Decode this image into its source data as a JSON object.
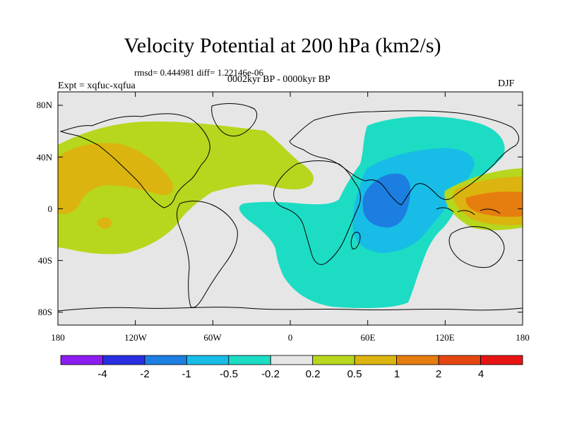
{
  "title": "Velocity Potential at 200 hPa (km2/s)",
  "stats": "rmsd= 0.444981 diff= 1.22146e-06",
  "experiment": "Expt = xqfuc-xqfua",
  "period": "0002kyr BP - 0000kyr BP",
  "season": "DJF",
  "x_ticks": [
    "180",
    "120W",
    "60W",
    "0",
    "60E",
    "120E",
    "180"
  ],
  "y_ticks": [
    "80N",
    "40N",
    "0",
    "40S",
    "80S"
  ],
  "colorbar": {
    "labels": [
      "-4",
      "-2",
      "-1",
      "-0.5",
      "-0.2",
      "0.2",
      "0.5",
      "1",
      "2",
      "4"
    ],
    "colors": [
      "#8c1cf0",
      "#2a2ee0",
      "#1c7ee0",
      "#17bde6",
      "#1ddcc4",
      "#e6e6e6",
      "#b6d71e",
      "#dcb40f",
      "#e67d0f",
      "#e4460f",
      "#e81414"
    ]
  }
}
